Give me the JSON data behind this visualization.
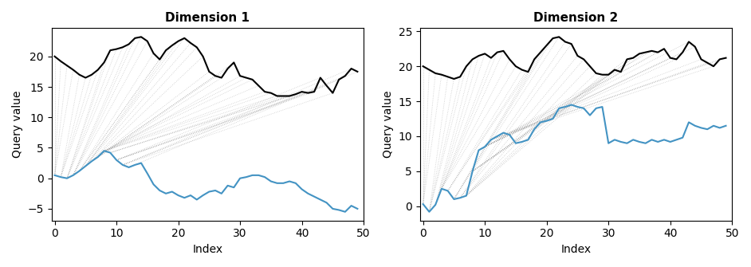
{
  "title1": "Dimension 1",
  "title2": "Dimension 2",
  "xlabel": "Index",
  "ylabel": "Query value",
  "fig_width": 9.42,
  "fig_height": 3.35,
  "dpi": 100,
  "line_black_color": "black",
  "line_blue_color": "#4393c3",
  "warp_color": "#888888",
  "warp_alpha": 0.45,
  "warp_lw": 0.6,
  "black1": [
    20.0,
    19.2,
    18.5,
    17.8,
    17.0,
    16.5,
    17.0,
    17.8,
    19.0,
    21.0,
    21.2,
    21.5,
    22.0,
    23.0,
    23.2,
    22.5,
    20.5,
    19.5,
    21.0,
    21.8,
    22.5,
    23.0,
    22.2,
    21.5,
    20.0,
    17.5,
    16.8,
    16.5,
    18.0,
    19.0,
    16.8,
    16.5,
    16.2,
    15.2,
    14.2,
    14.0,
    13.5,
    13.5,
    13.5,
    13.8,
    14.2,
    14.0,
    14.2,
    16.5,
    15.2,
    14.0,
    16.2,
    16.8,
    18.0,
    17.5
  ],
  "blue1": [
    0.5,
    0.2,
    0.0,
    0.5,
    1.2,
    2.0,
    2.8,
    3.5,
    4.5,
    4.2,
    3.0,
    2.2,
    1.8,
    2.2,
    2.5,
    0.8,
    -1.0,
    -2.0,
    -2.5,
    -2.2,
    -2.8,
    -3.2,
    -2.8,
    -3.5,
    -2.8,
    -2.2,
    -2.0,
    -2.5,
    -1.2,
    -1.5,
    0.0,
    0.2,
    0.5,
    0.5,
    0.2,
    -0.5,
    -0.8,
    -0.8,
    -0.5,
    -0.8,
    -1.8,
    -2.5,
    -3.0,
    -3.5,
    -4.0,
    -5.0,
    -5.2,
    -5.5,
    -4.5,
    -5.0
  ],
  "black2": [
    20.0,
    19.5,
    19.0,
    18.8,
    18.5,
    18.2,
    18.5,
    20.0,
    21.0,
    21.5,
    21.8,
    21.2,
    22.0,
    22.2,
    21.0,
    20.0,
    19.5,
    19.2,
    21.0,
    22.0,
    23.0,
    24.0,
    24.2,
    23.5,
    23.2,
    21.5,
    21.0,
    20.0,
    19.0,
    18.8,
    18.8,
    19.5,
    19.2,
    21.0,
    21.2,
    21.8,
    22.0,
    22.2,
    22.0,
    22.5,
    21.2,
    21.0,
    22.0,
    23.5,
    22.8,
    21.0,
    20.5,
    20.0,
    21.0,
    21.2
  ],
  "blue2": [
    0.3,
    -0.8,
    0.2,
    2.5,
    2.2,
    1.0,
    1.2,
    1.5,
    5.0,
    8.0,
    8.5,
    9.5,
    10.0,
    10.5,
    10.2,
    9.0,
    9.2,
    9.5,
    11.0,
    12.0,
    12.2,
    12.5,
    14.0,
    14.2,
    14.5,
    14.2,
    14.0,
    13.0,
    14.0,
    14.2,
    9.0,
    9.5,
    9.2,
    9.0,
    9.5,
    9.2,
    9.0,
    9.5,
    9.2,
    9.5,
    9.2,
    9.5,
    9.8,
    12.0,
    11.5,
    11.2,
    11.0,
    11.5,
    11.2,
    11.5
  ]
}
